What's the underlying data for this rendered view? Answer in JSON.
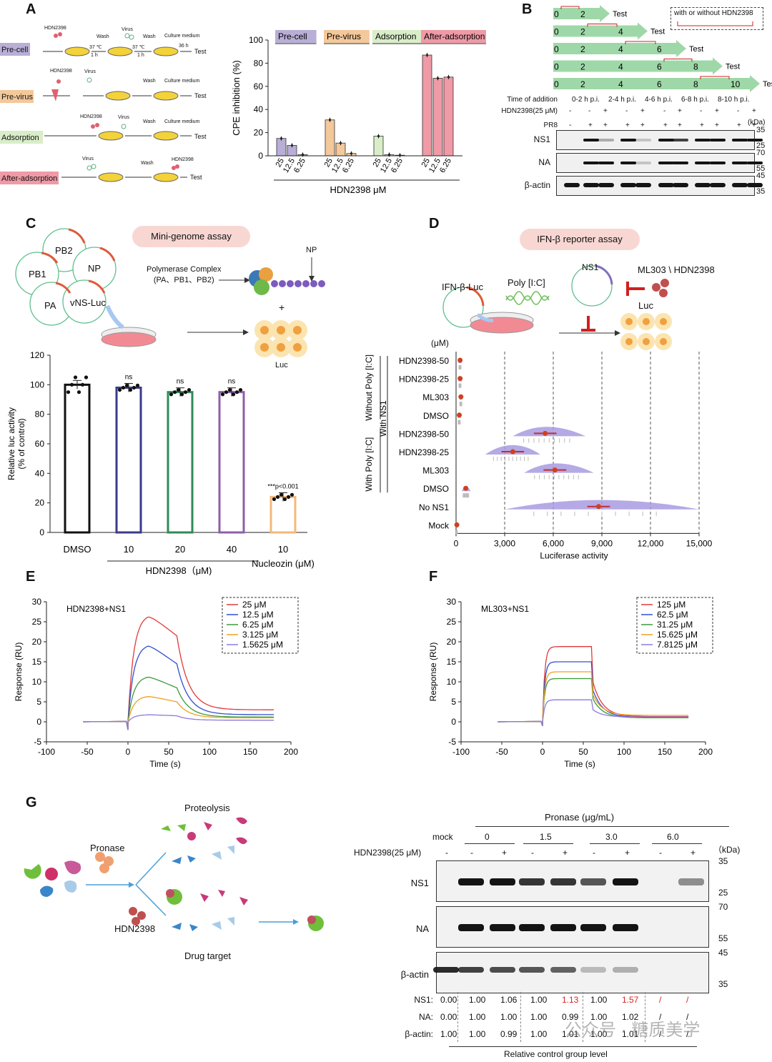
{
  "panels": {
    "A": "A",
    "B": "B",
    "C": "C",
    "D": "D",
    "E": "E",
    "F": "F",
    "G": "G"
  },
  "A": {
    "rows": [
      "Pre-cell",
      "Pre-virus",
      "Adsorption",
      "After-adsorption"
    ],
    "row_colors": [
      "#b9aed6",
      "#f3c89a",
      "#d9edc9",
      "#ef9aa6"
    ],
    "schematic": {
      "compound": "HDN2398",
      "virus": "Virus",
      "wash": "Wash",
      "culture": "Culture medium",
      "temp": "37 ℃",
      "hour": "1 h",
      "time36": "36 h",
      "test": "Test"
    },
    "chart_data": {
      "type": "bar",
      "groups": [
        "Pre-cell",
        "Pre-virus",
        "Adsorption",
        "After-adsorption"
      ],
      "categories": [
        "25",
        "12.5",
        "6.25"
      ],
      "series": [
        {
          "name": "Pre-cell",
          "values": [
            15,
            9,
            1
          ]
        },
        {
          "name": "Pre-virus",
          "values": [
            31,
            11,
            2
          ]
        },
        {
          "name": "Adsorption",
          "values": [
            17,
            1,
            0.5
          ]
        },
        {
          "name": "After-adsorption",
          "values": [
            87,
            67,
            68
          ]
        }
      ],
      "ylabel": "CPE inhibition (%)",
      "xlabel": "HDN2398  μM",
      "ylim": [
        0,
        100
      ],
      "yticks": [
        "0",
        "20",
        "40",
        "60",
        "80",
        "100"
      ]
    }
  },
  "B": {
    "note": "with or without HDN2398",
    "arrows": [
      {
        "ticks": [
          "0",
          "2"
        ],
        "test": "Test"
      },
      {
        "ticks": [
          "0",
          "2",
          "4"
        ],
        "test": "Test"
      },
      {
        "ticks": [
          "0",
          "2",
          "4",
          "6"
        ],
        "test": "Test"
      },
      {
        "ticks": [
          "0",
          "2",
          "4",
          "6",
          "8"
        ],
        "test": "Test"
      },
      {
        "ticks": [
          "0",
          "2",
          "4",
          "6",
          "8",
          "10"
        ],
        "test": "Test"
      }
    ],
    "time_label": "Time of addition",
    "time_points": [
      "0-2 h p.i.",
      "2-4 h p.i.",
      "4-6 h p.i.",
      "6-8 h p.i.",
      "8-10 h p.i."
    ],
    "hdn_label": "HDN2398(25 μM)",
    "hdn_signs": [
      "-",
      "-",
      "+",
      "-",
      "+",
      "-",
      "+",
      "-",
      "+",
      "-",
      "+"
    ],
    "pr8_label": "PR8",
    "pr8_signs": [
      "-",
      "+",
      "+",
      "+",
      "+",
      "+",
      "+",
      "+",
      "+",
      "+",
      "+"
    ],
    "kda": "(kDa)",
    "blots": [
      {
        "label": "NS1",
        "marks": [
          "35",
          "25"
        ]
      },
      {
        "label": "NA",
        "marks": [
          "70",
          "55"
        ]
      },
      {
        "label": "β-actin",
        "marks": [
          "45",
          "35"
        ]
      }
    ]
  },
  "C": {
    "title": "Mini-genome assay",
    "plasmids": [
      "PB2",
      "PB1",
      "NP",
      "PA",
      "vNS-Luc"
    ],
    "complex": "Polymerase Complex\n(PA、PB1、PB2)",
    "np": "NP",
    "plus": "+",
    "luc": "Luc",
    "chart_data": {
      "type": "bar",
      "categories": [
        "DMSO",
        "10",
        "20",
        "40",
        "10"
      ],
      "values": [
        100,
        98,
        95,
        95,
        24
      ],
      "colors": [
        "#111111",
        "#3a3a8c",
        "#2e8b57",
        "#8e5fa8",
        "#f4b878"
      ],
      "ylabel": "Relative luc activity\n(% of control)",
      "ylim": [
        0,
        120
      ],
      "yticks": [
        "0",
        "20",
        "40",
        "60",
        "80",
        "100",
        "120"
      ],
      "annotations": [
        "",
        "ns",
        "ns",
        "ns",
        "***p<0.001"
      ],
      "group_label_1": "HDN2398（μM)",
      "group_label_2": "Nucleozin (μM)"
    }
  },
  "D": {
    "title": "IFN-β reporter assay",
    "labels": {
      "ifn": "IFN-β-Luc",
      "poly": "Poly [I:C]",
      "ns1": "NS1",
      "inhib": "ML303 \\ HDN2398",
      "luc": "Luc",
      "unit": "(μM)"
    },
    "groups": [
      "Without Poly [I:C]",
      "With Poly [I:C]",
      "With NS1"
    ],
    "chart_data": {
      "type": "scatter",
      "categories": [
        "HDN2398-50",
        "HDN2398-25",
        "ML303",
        "DMSO",
        "HDN2398-50",
        "HDN2398-25",
        "ML303",
        "DMSO",
        "No NS1",
        "Mock"
      ],
      "means": [
        250,
        250,
        300,
        200,
        5500,
        3500,
        6100,
        600,
        8800,
        50
      ],
      "spread": [
        [
          150,
          350
        ],
        [
          150,
          350
        ],
        [
          200,
          400
        ],
        [
          100,
          300
        ],
        [
          3500,
          8000
        ],
        [
          1800,
          5200
        ],
        [
          4200,
          8500
        ],
        [
          350,
          900
        ],
        [
          3000,
          15000
        ],
        [
          0,
          100
        ]
      ],
      "xlabel": "Luciferase activity",
      "xlim": [
        0,
        15000
      ],
      "xticks": [
        "0",
        "3,000",
        "6,000",
        "9,000",
        "12,000",
        "15,000"
      ]
    }
  },
  "E": {
    "chart_data": {
      "type": "line",
      "title": "HDN2398+NS1",
      "series": [
        {
          "name": "25 μM",
          "color": "#e03a3a",
          "peak": 27,
          "plateau": 21.5,
          "end": 3
        },
        {
          "name": "12.5 μM",
          "color": "#3050d0",
          "peak": 19.5,
          "plateau": 14.5,
          "end": 1.8
        },
        {
          "name": "6.25 μM",
          "color": "#3a9a3a",
          "peak": 11.5,
          "plateau": 8.5,
          "end": 1.2
        },
        {
          "name": "3.125 μM",
          "color": "#f0a020",
          "peak": 6.5,
          "plateau": 5,
          "end": 1
        },
        {
          "name": "1.5625 μM",
          "color": "#8a7ae0",
          "peak": 1.8,
          "plateau": 1.5,
          "end": 0.4
        }
      ],
      "xlabel": "Time (s)",
      "ylabel": "Response (RU)",
      "xlim": [
        -100,
        200
      ],
      "ylim": [
        -5,
        30
      ],
      "xticks": [
        "-100",
        "-50",
        "0",
        "50",
        "100",
        "150",
        "200"
      ],
      "yticks": [
        "-5",
        "0",
        "5",
        "10",
        "15",
        "20",
        "25",
        "30"
      ]
    }
  },
  "F": {
    "chart_data": {
      "type": "line",
      "title": "ML303+NS1",
      "series": [
        {
          "name": "125 μM",
          "color": "#e03a3a",
          "plateau": 18.8,
          "end": 1.3
        },
        {
          "name": "62.5 μM",
          "color": "#3050d0",
          "plateau": 15,
          "end": 1.1
        },
        {
          "name": "31.25 μM",
          "color": "#3a9a3a",
          "plateau": 10.8,
          "end": 1.0
        },
        {
          "name": "15.625 μM",
          "color": "#f0a020",
          "plateau": 12.5,
          "end": 1.6
        },
        {
          "name": "7.8125 μM",
          "color": "#8a7ae0",
          "plateau": 5.5,
          "end": 1.2
        }
      ],
      "xlabel": "Time (s)",
      "ylabel": "Response (RU)",
      "xlim": [
        -100,
        200
      ],
      "ylim": [
        -5,
        30
      ],
      "xticks": [
        "-100",
        "-50",
        "0",
        "50",
        "100",
        "150",
        "200"
      ],
      "yticks": [
        "-5",
        "0",
        "5",
        "10",
        "15",
        "20",
        "25",
        "30"
      ]
    }
  },
  "G": {
    "labels": {
      "pronase": "Pronase",
      "proteolysis": "Proteolysis",
      "hdn": "HDN2398",
      "target": "Drug target"
    },
    "blot": {
      "pronase_title": "Pronase (μg/mL)",
      "mock": "mock",
      "conc": [
        "0",
        "1.5",
        "3.0",
        "6.0"
      ],
      "hdn_label": "HDN2398(25 μM)",
      "signs": [
        "-",
        "-",
        "+",
        "-",
        "+",
        "-",
        "+",
        "-",
        "+"
      ],
      "kda": "（kDa)",
      "rows": [
        {
          "label": "NS1",
          "marks": [
            "35",
            "25"
          ]
        },
        {
          "label": "NA",
          "marks": [
            "70",
            "55"
          ]
        },
        {
          "label": "β-actin",
          "marks": [
            "45",
            "35"
          ]
        }
      ]
    },
    "table": {
      "rows": [
        {
          "label": "NS1:",
          "values": [
            "0.00",
            "1.00",
            "1.06",
            "1.00",
            "1.13",
            "1.00",
            "1.57",
            "/",
            "/"
          ]
        },
        {
          "label": "NA:",
          "values": [
            "0.00",
            "1.00",
            "1.00",
            "1.00",
            "0.99",
            "1.00",
            "1.02",
            "/",
            "/"
          ]
        },
        {
          "label": "β-actin:",
          "values": [
            "1.00",
            "1.00",
            "0.99",
            "1.00",
            "1.01",
            "1.00",
            "1.01",
            "/",
            "/"
          ]
        }
      ],
      "footer": "Relative control group level",
      "highlight_color": "#e02020"
    },
    "watermark": "公众号 · 糖质美学"
  }
}
